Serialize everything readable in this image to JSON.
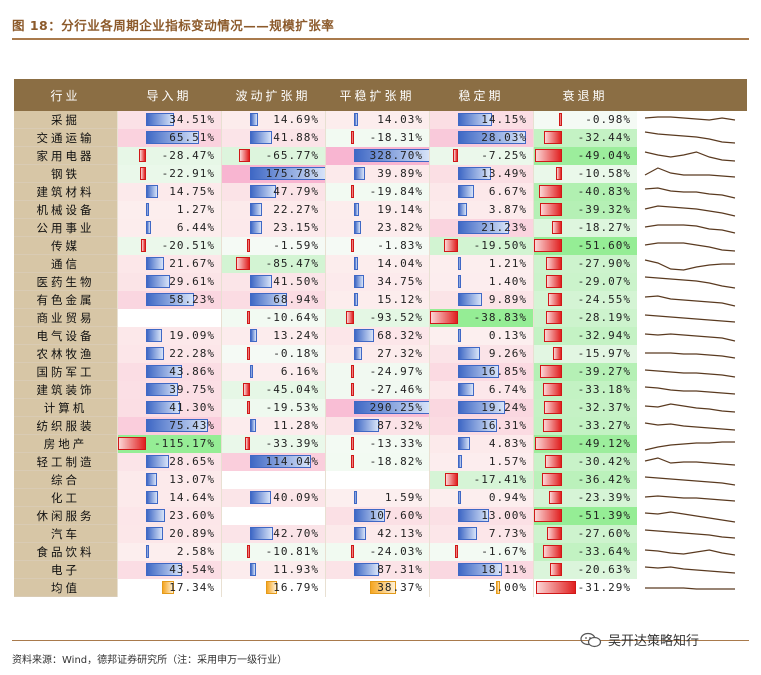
{
  "title": "图 18：分行业各周期企业指标变动情况——规模扩张率",
  "headers": [
    "行业",
    "导入期",
    "波动扩张期",
    "平稳扩张期",
    "稳定期",
    "衰退期"
  ],
  "rows": [
    {
      "name": "采掘",
      "v": [
        "34.51%",
        "14.69%",
        "14.03%",
        "14.15%",
        "-0.98%"
      ],
      "n": [
        34.51,
        14.69,
        14.03,
        14.15,
        -0.98
      ],
      "s": [
        6,
        5,
        5,
        6,
        7,
        8,
        6,
        8
      ]
    },
    {
      "name": "交通运输",
      "v": [
        "65.51%",
        "41.88%",
        "-18.31%",
        "28.03%",
        "-32.44%"
      ],
      "n": [
        65.51,
        41.88,
        -18.31,
        28.03,
        -32.44
      ],
      "s": [
        2,
        4,
        5,
        6,
        7,
        9,
        12,
        13
      ]
    },
    {
      "name": "家用电器",
      "v": [
        "-28.47%",
        "-65.77%",
        "328.70%",
        "-7.25%",
        "-49.04%"
      ],
      "n": [
        -28.47,
        -65.77,
        328.7,
        -7.25,
        -49.04
      ],
      "s": [
        4,
        7,
        9,
        7,
        4,
        9,
        12,
        13
      ]
    },
    {
      "name": "钢铁",
      "v": [
        "-22.91%",
        "175.78%",
        "39.89%",
        "13.49%",
        "-10.58%"
      ],
      "n": [
        -22.91,
        175.78,
        39.89,
        13.49,
        -10.58
      ],
      "s": [
        9,
        2,
        7,
        9,
        9,
        9,
        10,
        11
      ]
    },
    {
      "name": "建筑材料",
      "v": [
        "14.75%",
        "47.79%",
        "-19.84%",
        "6.67%",
        "-40.83%"
      ],
      "n": [
        14.75,
        47.79,
        -19.84,
        6.67,
        -40.83
      ],
      "s": [
        5,
        4,
        7,
        8,
        8,
        10,
        11,
        14
      ]
    },
    {
      "name": "机械设备",
      "v": [
        "1.27%",
        "22.27%",
        "19.14%",
        "3.87%",
        "-39.32%"
      ],
      "n": [
        1.27,
        22.27,
        19.14,
        3.87,
        -39.32
      ],
      "s": [
        7,
        4,
        5,
        6,
        7,
        9,
        11,
        14
      ]
    },
    {
      "name": "公用事业",
      "v": [
        "6.44%",
        "23.15%",
        "23.82%",
        "21.23%",
        "-18.27%"
      ],
      "n": [
        6.44,
        23.15,
        23.82,
        21.23,
        -18.27
      ],
      "s": [
        7,
        5,
        5,
        5,
        6,
        9,
        10,
        13
      ]
    },
    {
      "name": "传媒",
      "v": [
        "-20.51%",
        "-1.59%",
        "-1.83%",
        "-19.50%",
        "-51.60%"
      ],
      "n": [
        -20.51,
        -1.59,
        -1.83,
        -19.5,
        -51.6
      ],
      "s": [
        7,
        5,
        5,
        5,
        7,
        9,
        12,
        13
      ]
    },
    {
      "name": "通信",
      "v": [
        "21.67%",
        "-85.47%",
        "14.04%",
        "1.21%",
        "-27.90%"
      ],
      "n": [
        21.67,
        -85.47,
        14.04,
        1.21,
        -27.9
      ],
      "s": [
        4,
        7,
        13,
        14,
        11,
        9,
        8,
        8
      ]
    },
    {
      "name": "医药生物",
      "v": [
        "29.61%",
        "41.50%",
        "34.75%",
        "1.40%",
        "-29.07%"
      ],
      "n": [
        29.61,
        41.5,
        34.75,
        1.4,
        -29.07
      ],
      "s": [
        3,
        4,
        5,
        6,
        7,
        9,
        12,
        14
      ]
    },
    {
      "name": "有色金属",
      "v": [
        "58.23%",
        "68.94%",
        "15.12%",
        "9.89%",
        "-24.55%"
      ],
      "n": [
        58.23,
        68.94,
        15.12,
        9.89,
        -24.55
      ],
      "s": [
        5,
        4,
        7,
        8,
        9,
        10,
        11,
        14
      ]
    },
    {
      "name": "商业贸易",
      "v": [
        "",
        "-10.64%",
        "-93.52%",
        "-38.83%",
        "-28.19%"
      ],
      "n": [
        null,
        -10.64,
        -93.52,
        -38.83,
        -28.19
      ],
      "s": [
        5,
        6,
        7,
        8,
        9,
        10,
        11,
        12
      ]
    },
    {
      "name": "电气设备",
      "v": [
        "19.09%",
        "13.24%",
        "68.32%",
        "0.13%",
        "-32.94%"
      ],
      "n": [
        19.09,
        13.24,
        68.32,
        0.13,
        -32.94
      ],
      "s": [
        6,
        7,
        6,
        7,
        8,
        9,
        10,
        13
      ]
    },
    {
      "name": "农林牧渔",
      "v": [
        "22.28%",
        "-0.18%",
        "27.32%",
        "9.26%",
        "-15.97%"
      ],
      "n": [
        22.28,
        -0.18,
        27.32,
        9.26,
        -15.97
      ],
      "s": [
        7,
        7,
        7,
        8,
        8,
        9,
        10,
        12
      ]
    },
    {
      "name": "国防军工",
      "v": [
        "43.86%",
        "6.16%",
        "-24.97%",
        "16.85%",
        "-39.27%"
      ],
      "n": [
        43.86,
        6.16,
        -24.97,
        16.85,
        -39.27
      ],
      "s": [
        6,
        7,
        8,
        9,
        9,
        10,
        11,
        13
      ]
    },
    {
      "name": "建筑装饰",
      "v": [
        "39.75%",
        "-45.04%",
        "-27.46%",
        "6.74%",
        "-33.18%"
      ],
      "n": [
        39.75,
        -45.04,
        -27.46,
        6.74,
        -33.18
      ],
      "s": [
        5,
        6,
        8,
        9,
        9,
        10,
        11,
        12
      ]
    },
    {
      "name": "计算机",
      "v": [
        "41.30%",
        "-19.53%",
        "290.25%",
        "19.24%",
        "-32.37%"
      ],
      "n": [
        41.3,
        -19.53,
        290.25,
        19.24,
        -32.37
      ],
      "s": [
        6,
        7,
        4,
        6,
        8,
        9,
        11,
        12
      ]
    },
    {
      "name": "纺织服装",
      "v": [
        "75.43%",
        "11.28%",
        "87.32%",
        "16.31%",
        "-33.27%"
      ],
      "n": [
        75.43,
        11.28,
        87.32,
        16.31,
        -33.27
      ],
      "s": [
        5,
        7,
        6,
        8,
        9,
        10,
        11,
        12
      ]
    },
    {
      "name": "房地产",
      "v": [
        "-115.17%",
        "-33.39%",
        "-13.33%",
        "4.83%",
        "-49.12%"
      ],
      "n": [
        -115.17,
        -33.39,
        -13.33,
        4.83,
        -49.12
      ],
      "s": [
        14,
        11,
        9,
        8,
        7,
        7,
        6,
        6
      ]
    },
    {
      "name": "轻工制造",
      "v": [
        "28.65%",
        "114.04%",
        "-18.82%",
        "1.57%",
        "-30.42%"
      ],
      "n": [
        28.65,
        114.04,
        -18.82,
        1.57,
        -30.42
      ],
      "s": [
        7,
        4,
        9,
        8,
        8,
        9,
        10,
        11
      ]
    },
    {
      "name": "综合",
      "v": [
        "13.07%",
        "",
        "",
        "-17.41%",
        "-36.42%"
      ],
      "n": [
        13.07,
        null,
        null,
        -17.41,
        -36.42
      ],
      "s": [
        5,
        6,
        7,
        8,
        9,
        10,
        11,
        13
      ]
    },
    {
      "name": "化工",
      "v": [
        "14.64%",
        "40.09%",
        "1.59%",
        "0.94%",
        "-23.39%"
      ],
      "n": [
        14.64,
        40.09,
        1.59,
        0.94,
        -23.39
      ],
      "s": [
        7,
        6,
        7,
        8,
        8,
        9,
        10,
        11
      ]
    },
    {
      "name": "休闲服务",
      "v": [
        "23.60%",
        "",
        "107.60%",
        "13.00%",
        "-51.39%"
      ],
      "n": [
        23.6,
        null,
        107.6,
        13.0,
        -51.39
      ],
      "s": [
        5,
        6,
        4,
        6,
        8,
        10,
        12,
        14
      ]
    },
    {
      "name": "汽车",
      "v": [
        "20.89%",
        "42.70%",
        "42.13%",
        "7.73%",
        "-27.60%"
      ],
      "n": [
        20.89,
        42.7,
        42.13,
        7.73,
        -27.6
      ],
      "s": [
        4,
        5,
        6,
        7,
        8,
        9,
        11,
        12
      ]
    },
    {
      "name": "食品饮料",
      "v": [
        "2.58%",
        "-10.81%",
        "-24.03%",
        "-1.67%",
        "-33.64%"
      ],
      "n": [
        2.58,
        -10.81,
        -24.03,
        -1.67,
        -33.64
      ],
      "s": [
        6,
        7,
        9,
        10,
        8,
        6,
        9,
        11
      ]
    },
    {
      "name": "电子",
      "v": [
        "43.54%",
        "11.93%",
        "87.31%",
        "18.11%",
        "-20.63%"
      ],
      "n": [
        43.54,
        11.93,
        87.31,
        18.11,
        -20.63
      ],
      "s": [
        5,
        6,
        5,
        7,
        8,
        9,
        10,
        11
      ]
    }
  ],
  "avg": {
    "name": "均值",
    "v": [
      "17.34%",
      "16.79%",
      "38.37%",
      "5.00%",
      "-31.29%"
    ],
    "n": [
      17.34,
      16.79,
      38.37,
      5.0,
      -31.29
    ],
    "s": [
      8,
      8,
      8,
      8,
      9,
      9,
      9,
      9
    ]
  },
  "source": "资料来源：Wind，德邦证券研究所（注：采用申万一级行业）",
  "watermark": "吴开达策略知行",
  "colors": {
    "header": "#8b6e44",
    "industry": "#d7c6a6",
    "pos": "#3f68c5",
    "neg": "#e02020",
    "avg": "#f5a623",
    "title": "#8c5a2b"
  }
}
